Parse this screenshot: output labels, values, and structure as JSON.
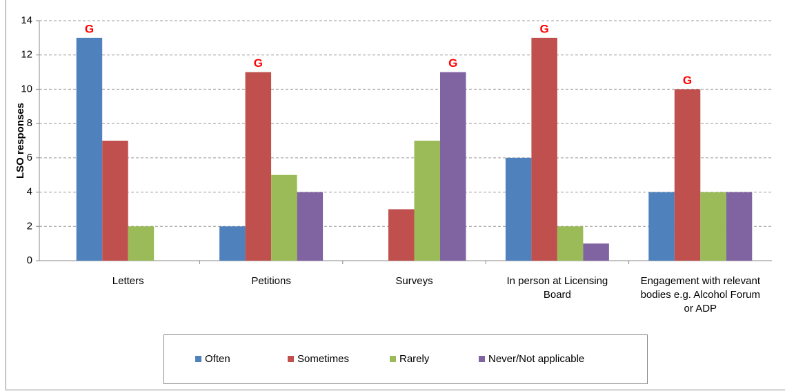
{
  "chart_data": {
    "type": "bar",
    "y_label": "LSO responses",
    "categories": [
      "Letters",
      "Petitions",
      "Surveys",
      "In person at Licensing Board",
      "Engagement with relevant bodies e.g. Alcohol Forum or ADP"
    ],
    "series": [
      {
        "name": "Often",
        "color": "#4f81bd",
        "values": [
          13,
          2,
          0,
          6,
          4
        ]
      },
      {
        "name": "Sometimes",
        "color": "#c0504d",
        "values": [
          7,
          11,
          3,
          13,
          10
        ]
      },
      {
        "name": "Rarely",
        "color": "#9bbb59",
        "values": [
          2,
          5,
          7,
          2,
          4
        ]
      },
      {
        "name": "Never/Not applicable",
        "color": "#8064a2",
        "values": [
          0,
          4,
          11,
          1,
          4
        ]
      }
    ],
    "annotations": [
      {
        "text": "G",
        "category": "Letters",
        "series": "Often"
      },
      {
        "text": "G",
        "category": "Petitions",
        "series": "Sometimes"
      },
      {
        "text": "G",
        "category": "Surveys",
        "series": "Never/Not applicable"
      },
      {
        "text": "G",
        "category": "In person at Licensing Board",
        "series": "Sometimes"
      },
      {
        "text": "G",
        "category": "Engagement with relevant bodies e.g. Alcohol Forum or ADP",
        "series": "Sometimes"
      }
    ],
    "annotation_color": "#ff0000",
    "ylim": [
      0,
      14
    ],
    "yticks": [
      0,
      2,
      4,
      6,
      8,
      10,
      12,
      14
    ],
    "grid": true,
    "legend": "bottom"
  }
}
